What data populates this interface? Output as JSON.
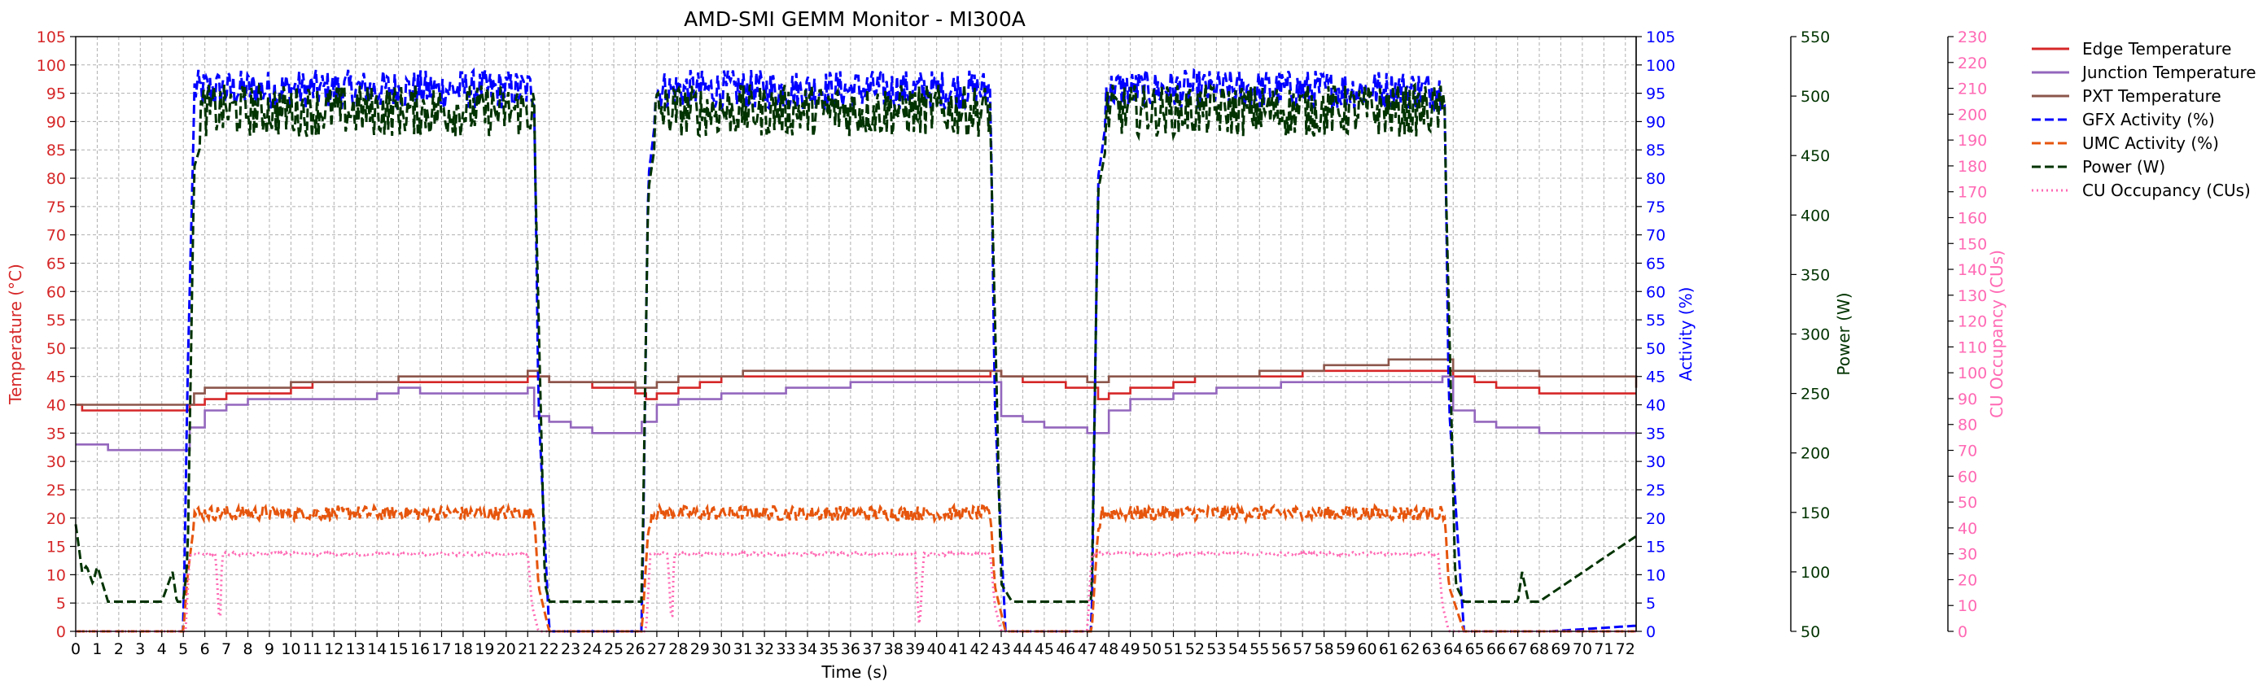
{
  "chart_data": {
    "type": "line",
    "title": "AMD-SMI GEMM Monitor - MI300A",
    "xlabel": "Time (s)",
    "xlim": [
      0,
      72.5
    ],
    "x_ticks": [
      0,
      1,
      2,
      3,
      4,
      5,
      6,
      7,
      8,
      9,
      10,
      11,
      12,
      13,
      14,
      15,
      16,
      17,
      18,
      19,
      20,
      21,
      22,
      23,
      24,
      25,
      26,
      27,
      28,
      29,
      30,
      31,
      32,
      33,
      34,
      35,
      36,
      37,
      38,
      39,
      40,
      41,
      42,
      43,
      44,
      45,
      46,
      47,
      48,
      49,
      50,
      51,
      52,
      53,
      54,
      55,
      56,
      57,
      58,
      59,
      60,
      61,
      62,
      63,
      64,
      65,
      66,
      67,
      68,
      69,
      70,
      71,
      72
    ],
    "grid": true,
    "legend_position": "top-right",
    "axes": {
      "temperature": {
        "label": "Temperature (°C)",
        "lim": [
          0,
          105
        ],
        "ticks": [
          0,
          5,
          10,
          15,
          20,
          25,
          30,
          35,
          40,
          45,
          50,
          55,
          60,
          65,
          70,
          75,
          80,
          85,
          90,
          95,
          100,
          105
        ],
        "color": "#d62728"
      },
      "activity": {
        "label": "Activity (%)",
        "lim": [
          0,
          105
        ],
        "ticks": [
          0,
          5,
          10,
          15,
          20,
          25,
          30,
          35,
          40,
          45,
          50,
          55,
          60,
          65,
          70,
          75,
          80,
          85,
          90,
          95,
          100,
          105
        ],
        "color": "#0000ff"
      },
      "power": {
        "label": "Power (W)",
        "lim": [
          50,
          550
        ],
        "ticks": [
          50,
          100,
          150,
          200,
          250,
          300,
          350,
          400,
          450,
          500,
          550
        ],
        "color": "#003300"
      },
      "cu": {
        "label": "CU Occupancy (CUs)",
        "lim": [
          0,
          230
        ],
        "ticks": [
          0,
          10,
          20,
          30,
          40,
          50,
          60,
          70,
          80,
          90,
          100,
          110,
          120,
          130,
          140,
          150,
          160,
          170,
          180,
          190,
          200,
          210,
          220,
          230
        ],
        "color": "#ff69b4"
      }
    },
    "series": [
      {
        "name": "Edge Temperature",
        "axis": "temperature",
        "color": "#d62728",
        "style": "solid",
        "x": [
          0,
          0.3,
          5.2,
          5.3,
          6,
          7,
          10,
          11,
          16,
          21,
          21.5,
          22,
          24,
          26,
          26.5,
          27,
          28,
          29,
          30,
          36,
          42.5,
          43,
          44,
          46,
          47,
          47.5,
          48,
          49,
          51,
          52,
          57,
          63.5,
          64,
          65,
          66,
          68,
          72.5
        ],
        "y": [
          40,
          39,
          39,
          40,
          41,
          42,
          43,
          44,
          44,
          45,
          45,
          44,
          43,
          42,
          41,
          42,
          43,
          44,
          45,
          45,
          46,
          45,
          44,
          43,
          43,
          41,
          42,
          43,
          44,
          45,
          46,
          46,
          45,
          44,
          43,
          42,
          42
        ]
      },
      {
        "name": "Junction Temperature",
        "axis": "temperature",
        "color": "#9467bd",
        "style": "solid",
        "x": [
          0,
          1,
          1.5,
          5.2,
          5.3,
          6,
          7,
          8,
          10,
          14,
          15,
          16,
          21,
          21.3,
          22,
          23,
          24,
          26,
          26.3,
          27,
          28,
          30,
          33,
          36,
          42.5,
          43,
          44,
          45,
          46,
          47,
          47.3,
          48,
          49,
          51,
          53,
          56,
          60,
          63.5,
          64,
          65,
          66,
          68,
          72.5
        ],
        "y": [
          33,
          33,
          32,
          32,
          36,
          39,
          40,
          41,
          41,
          42,
          43,
          42,
          43,
          38,
          37,
          36,
          35,
          35,
          37,
          40,
          41,
          42,
          43,
          44,
          44,
          38,
          37,
          36,
          36,
          35,
          35,
          39,
          41,
          42,
          43,
          44,
          44,
          45,
          39,
          37,
          36,
          35,
          35
        ]
      },
      {
        "name": "PXT Temperature",
        "axis": "temperature",
        "color": "#8c564b",
        "style": "solid",
        "x": [
          0,
          5.2,
          5.5,
          6,
          7,
          10,
          15,
          17,
          21,
          21.5,
          22,
          26,
          26.5,
          27,
          28,
          31,
          34,
          42.5,
          43,
          47,
          47.5,
          48,
          50,
          55,
          58,
          61,
          63.5,
          64,
          68,
          72.5
        ],
        "y": [
          40,
          40,
          42,
          43,
          43,
          44,
          45,
          45,
          46,
          45,
          44,
          43,
          43,
          44,
          45,
          46,
          46,
          46,
          45,
          44,
          44,
          45,
          45,
          46,
          47,
          48,
          48,
          46,
          45,
          43
        ]
      },
      {
        "name": "GFX Activity (%)",
        "axis": "activity",
        "color": "#0000ff",
        "style": "dashed",
        "mean": 96,
        "x": [
          0,
          5,
          5.2,
          5.5,
          6.2,
          21.3,
          21.5,
          22,
          26.3,
          26.6,
          27.2,
          42.5,
          42.7,
          43.2,
          47.2,
          47.5,
          48.2,
          63.6,
          63.8,
          64.5,
          68.5,
          72.5
        ],
        "y": [
          0,
          0,
          45,
          92,
          99,
          96,
          40,
          0,
          0,
          80,
          99,
          96,
          40,
          0,
          0,
          80,
          99,
          96,
          40,
          0,
          0,
          1
        ]
      },
      {
        "name": "UMC Activity (%)",
        "axis": "activity",
        "color": "#e6550d",
        "style": "dashed",
        "mean": 21,
        "x": [
          0,
          5,
          5.2,
          5.5,
          6,
          21.3,
          21.5,
          22,
          26.3,
          26.6,
          27,
          42.5,
          42.7,
          43.2,
          47.2,
          47.5,
          48,
          63.6,
          63.8,
          64.5,
          72.5
        ],
        "y": [
          0,
          0,
          10,
          19,
          20,
          21,
          8,
          0,
          0,
          18,
          20,
          21,
          8,
          0,
          0,
          18,
          20,
          21,
          8,
          0,
          0
        ]
      },
      {
        "name": "Power (W)",
        "axis": "power",
        "color": "#003300",
        "style": "dashed",
        "mean": 490,
        "x": [
          0,
          0.3,
          0.5,
          0.8,
          1,
          1.5,
          2,
          3,
          4,
          4.5,
          4.7,
          5,
          5.2,
          5.5,
          6,
          21.3,
          21.5,
          21.8,
          22,
          26.3,
          26.6,
          27,
          42.5,
          42.7,
          43,
          43.5,
          47.2,
          47.5,
          48,
          63.6,
          63.8,
          64.1,
          64.5,
          65,
          66,
          67,
          67.2,
          67.5,
          68,
          72.5
        ],
        "y": [
          140,
          100,
          105,
          90,
          105,
          75,
          75,
          75,
          75,
          100,
          75,
          75,
          110,
          440,
          470,
          470,
          320,
          90,
          75,
          75,
          420,
          470,
          470,
          320,
          90,
          75,
          75,
          420,
          470,
          470,
          320,
          90,
          75,
          75,
          75,
          75,
          100,
          75,
          75,
          130
        ]
      },
      {
        "name": "CU Occupancy (CUs)",
        "axis": "cu",
        "color": "#ff69b4",
        "style": "dotted",
        "mean": 30,
        "x": [
          0,
          5.1,
          5.3,
          6.5,
          6.7,
          6.8,
          21,
          21.2,
          21.5,
          26.5,
          26.7,
          27.5,
          27.7,
          27.8,
          39,
          39.2,
          39.4,
          42.5,
          42.7,
          43,
          47,
          47.2,
          63.3,
          63.5,
          63.8,
          72.5
        ],
        "y": [
          0,
          0,
          30,
          30,
          0,
          30,
          30,
          10,
          0,
          0,
          30,
          30,
          0,
          30,
          30,
          0,
          30,
          30,
          10,
          0,
          0,
          30,
          30,
          10,
          0,
          0
        ]
      }
    ],
    "legend": [
      "Edge Temperature",
      "Junction Temperature",
      "PXT Temperature",
      "GFX Activity (%)",
      "UMC Activity (%)",
      "Power (W)",
      "CU Occupancy (CUs)"
    ]
  }
}
